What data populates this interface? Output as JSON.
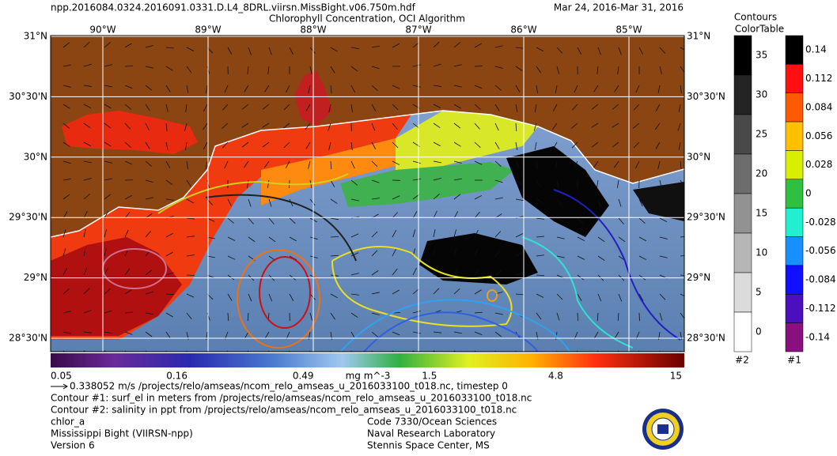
{
  "header": {
    "file": "npp.2016084.0324.2016091.0331.D.L4_8DRL.viirsn.MissBight.v06.750m.hdf",
    "title": "Chlorophyll Concentration, OCI Algorithm",
    "dates": "Mar 24, 2016-Mar 31, 2016"
  },
  "map": {
    "lon_labels": [
      "90°W",
      "89°W",
      "88°W",
      "87°W",
      "86°W",
      "85°W"
    ],
    "lat_labels": [
      "31°N",
      "30°30'N",
      "30°N",
      "29°30'N",
      "29°N",
      "28°30'N"
    ]
  },
  "colorbar": {
    "labels": [
      "0.05",
      "0.16",
      "0.49",
      "1.5",
      "4.8",
      "15"
    ],
    "unit": "mg m^-3"
  },
  "contour_legend": {
    "title_lines": [
      "Contours",
      "ColorTable"
    ],
    "table2": {
      "labels": [
        "35",
        "30",
        "25",
        "20",
        "15",
        "10",
        "5",
        "0"
      ],
      "name": "#2"
    },
    "table1": {
      "labels": [
        "0.14",
        "0.112",
        "0.084",
        "0.056",
        "0.028",
        "0",
        "-0.028",
        "-0.056",
        "-0.084",
        "-0.112",
        "-0.14"
      ],
      "name": "#1"
    }
  },
  "footer": {
    "vector": "0.338052 m/s /projects/relo/amseas/ncom_relo_amseas_u_2016033100_t018.nc, timestep 0",
    "contour1": "Contour #1: surf_el in meters from /projects/relo/amseas/ncom_relo_amseas_u_2016033100_t018.nc",
    "contour2": "Contour #2: salinity in ppt from /projects/relo/amseas/ncom_relo_amseas_u_2016033100_t018.nc",
    "left": [
      "chlor_a",
      "Mississippi Bight (VIIRSN-npp)",
      "Version 6"
    ],
    "right": [
      "Code 7330/Ocean Sciences",
      "Naval Research Laboratory",
      "Stennis Space Center, MS"
    ]
  }
}
